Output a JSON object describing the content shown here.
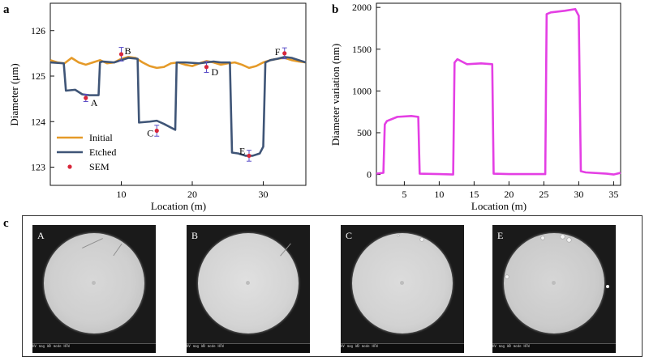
{
  "figure": {
    "panel_a_letter": "a",
    "panel_b_letter": "b",
    "panel_c_letter": "c"
  },
  "chart_data": [
    {
      "type": "line",
      "panel": "a",
      "xlabel": "Location (m)",
      "ylabel": "Diameter (μm)",
      "xlim": [
        0,
        36
      ],
      "ylim": [
        122.6,
        126.6
      ],
      "xticks": [
        10,
        20,
        30
      ],
      "yticks": [
        123,
        124,
        125,
        126
      ],
      "legend": {
        "placement": "bottom-left",
        "entries": [
          "Initial",
          "Etched",
          "SEM"
        ]
      },
      "series": [
        {
          "name": "Initial",
          "color": "#e59a28",
          "x": [
            0,
            1,
            2,
            3,
            4,
            5,
            6,
            7,
            8,
            9,
            10,
            11,
            12,
            13,
            14,
            15,
            16,
            17,
            18,
            19,
            20,
            21,
            22,
            23,
            24,
            25,
            26,
            27,
            28,
            29,
            30,
            31,
            32,
            33,
            34,
            35,
            36
          ],
          "y": [
            125.35,
            125.3,
            125.28,
            125.4,
            125.3,
            125.25,
            125.3,
            125.35,
            125.28,
            125.3,
            125.38,
            125.42,
            125.4,
            125.3,
            125.22,
            125.18,
            125.2,
            125.28,
            125.3,
            125.25,
            125.22,
            125.28,
            125.33,
            125.3,
            125.25,
            125.28,
            125.3,
            125.25,
            125.18,
            125.22,
            125.3,
            125.35,
            125.38,
            125.4,
            125.35,
            125.32,
            125.3
          ]
        },
        {
          "name": "Etched",
          "color": "#3f5577",
          "x": [
            0,
            1.9,
            2.2,
            3.5,
            4.5,
            5.5,
            6.8,
            7.0,
            7.3,
            9,
            10,
            11,
            12.3,
            12.5,
            14,
            15,
            16,
            17.6,
            17.8,
            19,
            21,
            22,
            23,
            24,
            25.3,
            25.6,
            26.5,
            27.5,
            28.5,
            29.5,
            30,
            30.3,
            31,
            32,
            33,
            34,
            35,
            36
          ],
          "y": [
            125.3,
            125.28,
            124.68,
            124.7,
            124.6,
            124.58,
            124.58,
            125.3,
            125.32,
            125.3,
            125.35,
            125.4,
            125.38,
            123.98,
            124.0,
            124.02,
            123.95,
            123.82,
            125.3,
            125.3,
            125.28,
            125.3,
            125.32,
            125.3,
            125.3,
            123.32,
            123.3,
            123.25,
            123.25,
            123.3,
            123.45,
            125.3,
            125.35,
            125.38,
            125.42,
            125.4,
            125.35,
            125.3
          ]
        },
        {
          "name": "SEM",
          "color": "#d8263a",
          "points": [
            {
              "label": "A",
              "x": 5.0,
              "y": 124.52,
              "err": 0.08
            },
            {
              "label": "B",
              "x": 10.0,
              "y": 125.48,
              "err": 0.15
            },
            {
              "label": "C",
              "x": 15.0,
              "y": 123.8,
              "err": 0.12
            },
            {
              "label": "D",
              "x": 22.0,
              "y": 125.2,
              "err": 0.12
            },
            {
              "label": "E",
              "x": 28.0,
              "y": 123.25,
              "err": 0.12
            },
            {
              "label": "F",
              "x": 33.0,
              "y": 125.5,
              "err": 0.12
            }
          ]
        }
      ]
    },
    {
      "type": "line",
      "panel": "b",
      "xlabel": "Location (m)",
      "ylabel": "Diameter variation (nm)",
      "xlim": [
        1,
        36
      ],
      "ylim": [
        -130,
        2050
      ],
      "xticks": [
        5,
        10,
        15,
        20,
        25,
        30,
        35
      ],
      "yticks": [
        0,
        500,
        1000,
        1500,
        2000
      ],
      "series": [
        {
          "color": "#e43fe4",
          "x": [
            1,
            2,
            2.2,
            2.5,
            4,
            6,
            7,
            7.2,
            10,
            12,
            12.2,
            12.6,
            14,
            16,
            17.6,
            17.8,
            20,
            25.2,
            25.4,
            26,
            28,
            29.5,
            30,
            30.3,
            31,
            34,
            35,
            36
          ],
          "y": [
            10,
            20,
            600,
            640,
            690,
            700,
            690,
            10,
            5,
            0,
            1340,
            1380,
            1320,
            1330,
            1320,
            10,
            5,
            5,
            1920,
            1940,
            1960,
            1980,
            1900,
            40,
            25,
            10,
            0,
            20
          ]
        }
      ]
    }
  ],
  "sem_images": [
    {
      "label": "A"
    },
    {
      "label": "B"
    },
    {
      "label": "C"
    },
    {
      "label": "E"
    }
  ]
}
